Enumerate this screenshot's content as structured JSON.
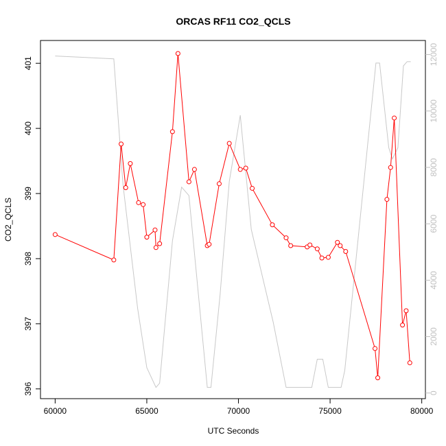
{
  "chart_data": {
    "type": "line",
    "title": "ORCAS RF11 CO2_QCLS",
    "xlabel": "UTC Seconds",
    "ylabel": "CO2_QCLS",
    "y2label": "",
    "xlim": [
      59200,
      80200
    ],
    "ylim": [
      395.85,
      401.35
    ],
    "y2lim": [
      -200,
      12500
    ],
    "xticks": [
      60000,
      65000,
      70000,
      75000,
      80000
    ],
    "xtick_labels": [
      "60000",
      "65000",
      "70000",
      "75000",
      "80000"
    ],
    "yticks": [
      396,
      397,
      398,
      399,
      400,
      401
    ],
    "ytick_labels": [
      "396",
      "397",
      "398",
      "399",
      "400",
      "401"
    ],
    "y2ticks": [
      0,
      2000,
      4000,
      6000,
      8000,
      10000,
      12000
    ],
    "y2tick_labels": [
      "0",
      "2000",
      "4000",
      "6000",
      "8000",
      "10000",
      "12000"
    ],
    "grid": false,
    "series": [
      {
        "axis": "left",
        "color": "#ff0000",
        "marker": "open-circle",
        "x": [
          60000,
          63200,
          63600,
          63850,
          64100,
          64550,
          64800,
          65000,
          65450,
          65500,
          65700,
          66400,
          66700,
          67300,
          67600,
          68300,
          68400,
          68950,
          69500,
          70100,
          70400,
          70750,
          71850,
          72600,
          72850,
          73750,
          73900,
          74300,
          74550,
          74900,
          75400,
          75550,
          75850,
          77450,
          77600,
          78100,
          78300,
          78500,
          78950,
          79150,
          79350
        ],
        "values": [
          398.37,
          397.98,
          399.76,
          399.09,
          399.46,
          398.86,
          398.83,
          398.33,
          398.44,
          398.17,
          398.23,
          399.95,
          401.15,
          399.18,
          399.37,
          398.2,
          398.22,
          399.15,
          399.77,
          399.37,
          399.39,
          399.08,
          398.52,
          398.32,
          398.2,
          398.18,
          398.21,
          398.15,
          398.01,
          398.02,
          398.25,
          398.2,
          398.11,
          396.62,
          396.17,
          398.91,
          399.4,
          400.16,
          396.98,
          397.2,
          396.4
        ]
      },
      {
        "axis": "right",
        "color": "#c8c8c8",
        "marker": "none",
        "x": [
          60000,
          63200,
          63700,
          64500,
          65000,
          65500,
          65700,
          66400,
          66900,
          67300,
          68300,
          68500,
          69000,
          69500,
          70100,
          70700,
          71900,
          72600,
          74000,
          74300,
          74600,
          74900,
          75600,
          75800,
          77500,
          77700,
          78200,
          78400,
          78700,
          79000,
          79200,
          79400
        ],
        "values": [
          11950,
          11850,
          7400,
          3000,
          900,
          200,
          350,
          5400,
          7300,
          7000,
          200,
          200,
          3500,
          7500,
          9850,
          5800,
          2500,
          200,
          200,
          1200,
          1200,
          200,
          200,
          800,
          11700,
          11700,
          8700,
          8300,
          8700,
          11600,
          11750,
          11750
        ]
      }
    ]
  }
}
